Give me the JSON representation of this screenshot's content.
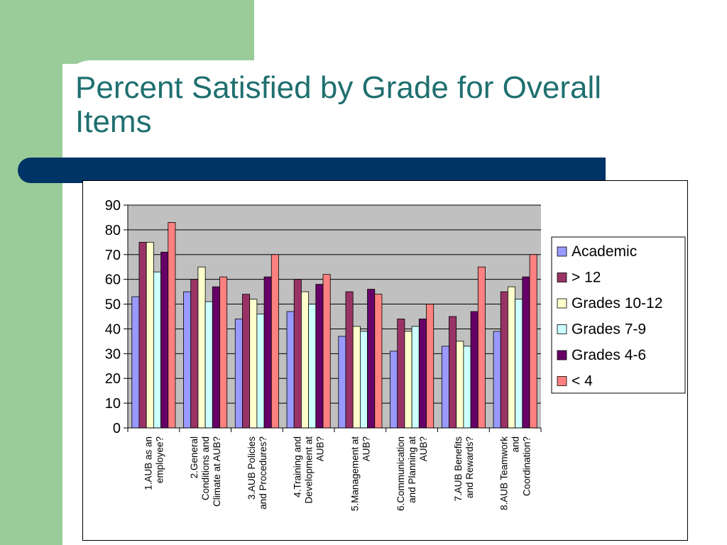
{
  "slide": {
    "title_line1": "Percent Satisfied by Grade  for Overall",
    "title_line2": "Items",
    "colors": {
      "green": "#99cc99",
      "navy": "#003366",
      "title": "#1f6f6f"
    }
  },
  "chart_data": {
    "type": "bar",
    "title": "",
    "xlabel": "",
    "ylabel": "",
    "ylim": [
      0,
      90
    ],
    "yticks": [
      0,
      10,
      20,
      30,
      40,
      50,
      60,
      70,
      80,
      90
    ],
    "grid": true,
    "legend_position": "right",
    "plot_background": "#c0c0c0",
    "categories": [
      [
        "1.AUB as an",
        "employee?"
      ],
      [
        "2.General",
        "Conditions and",
        "Climate at AUB?"
      ],
      [
        "3.AUB  Policies",
        "and Procedures?"
      ],
      [
        "4.Training and",
        "Development at",
        "AUB?"
      ],
      [
        "5.Management at",
        "AUB?"
      ],
      [
        "6.Communication",
        "and Planning at",
        "AUB?"
      ],
      [
        "7.AUB Benefits",
        "and Rewards?"
      ],
      [
        "8.AUB Teamwork",
        "and",
        "Coordination?"
      ]
    ],
    "series": [
      {
        "name": "Academic",
        "color": "#9999ff",
        "values": [
          53,
          55,
          44,
          47,
          37,
          31,
          33,
          39
        ]
      },
      {
        "name": "> 12",
        "color": "#993366",
        "values": [
          75,
          60,
          54,
          60,
          55,
          44,
          45,
          55
        ]
      },
      {
        "name": "Grades 10-12",
        "color": "#ffffcc",
        "values": [
          75,
          65,
          52,
          55,
          41,
          39,
          35,
          57
        ]
      },
      {
        "name": "Grades 7-9",
        "color": "#ccffff",
        "values": [
          63,
          51,
          46,
          50,
          39,
          41,
          33,
          52
        ]
      },
      {
        "name": "Grades 4-6",
        "color": "#660066",
        "values": [
          71,
          57,
          61,
          58,
          56,
          44,
          47,
          61
        ]
      },
      {
        "name": "< 4",
        "color": "#ff8080",
        "values": [
          83,
          61,
          70,
          62,
          54,
          50,
          65,
          70
        ]
      }
    ]
  }
}
